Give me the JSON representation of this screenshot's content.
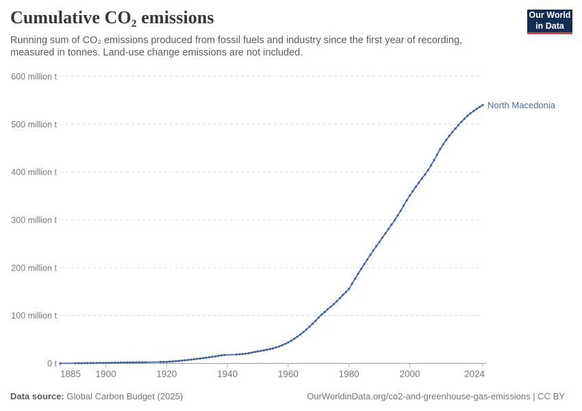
{
  "header": {
    "title": "Cumulative CO₂ emissions",
    "subtitle": "Running sum of CO₂ emissions produced from fossil fuels and industry since the first year of recording, measured in tonnes. Land-use change emissions are not included.",
    "logo_line1": "Our World",
    "logo_line2": "in Data"
  },
  "footer": {
    "source_label": "Data source:",
    "source_value": "Global Carbon Budget (2025)",
    "link_text": "OurWorldinData.org/co2-and-greenhouse-gas-emissions",
    "separator": "|",
    "license": "CC BY"
  },
  "chart_data": {
    "type": "line",
    "title": "Cumulative CO₂ emissions",
    "unit": "tonnes (values stored in million tonnes)",
    "xlabel": "",
    "ylabel": "",
    "xlim": [
      1885,
      2024
    ],
    "ylim_million_t": [
      0,
      600
    ],
    "grid": true,
    "legend_position": "line-end-label",
    "xticks": [
      1885,
      1900,
      1920,
      1940,
      1960,
      1980,
      2000,
      2024
    ],
    "yticks": [
      {
        "value": 0,
        "label": "0 t"
      },
      {
        "value": 100,
        "label": "100 million t"
      },
      {
        "value": 200,
        "label": "200 million t"
      },
      {
        "value": 300,
        "label": "300 million t"
      },
      {
        "value": 400,
        "label": "400 million t"
      },
      {
        "value": 500,
        "label": "500 million t"
      },
      {
        "value": 600,
        "label": "600 million t"
      }
    ],
    "series": [
      {
        "name": "North Macedonia",
        "x_start": 1885,
        "x_step": 1,
        "values_million_t": [
          0.05,
          0.1,
          0.15,
          0.2,
          0.26,
          0.32,
          0.38,
          0.45,
          0.52,
          0.6,
          0.68,
          0.76,
          0.85,
          0.94,
          1.03,
          1.12,
          1.21,
          1.3,
          1.4,
          1.5,
          1.6,
          1.7,
          1.8,
          1.9,
          2.0,
          2.1,
          2.2,
          2.3,
          2.4,
          2.5,
          2.6,
          2.7,
          2.8,
          2.9,
          3.05,
          3.2,
          3.7,
          4.2,
          4.7,
          5.3,
          5.9,
          6.5,
          7.2,
          7.9,
          8.6,
          9.4,
          10.2,
          11.0,
          11.9,
          12.8,
          13.7,
          14.7,
          15.7,
          16.7,
          17.6,
          17.9,
          18.1,
          18.3,
          18.6,
          19.0,
          19.5,
          20.3,
          21.3,
          22.5,
          23.7,
          25.0,
          26.2,
          27.4,
          28.7,
          30.0,
          31.5,
          33.3,
          35.4,
          37.9,
          40.7,
          43.8,
          47.5,
          51.5,
          55.8,
          60.5,
          65.5,
          70.9,
          76.6,
          82.7,
          89.2,
          96.0,
          102,
          107.5,
          113,
          118.5,
          124,
          130,
          136.5,
          143,
          149.5,
          156,
          166.5,
          177,
          187.5,
          197.5,
          207.5,
          217,
          226.5,
          236,
          245,
          254,
          263,
          272,
          281,
          290,
          299,
          309,
          319,
          330,
          340.5,
          351,
          360,
          369,
          378,
          386.5,
          395,
          404,
          414,
          425,
          436.5,
          448,
          458,
          467,
          475.5,
          483.5,
          491,
          498,
          505,
          511.5,
          517.5,
          523,
          527.5,
          532,
          536,
          540
        ]
      }
    ],
    "marker_gap_years": [
      1886,
      1887,
      1888,
      1889,
      1914,
      1915,
      1916,
      1917,
      1940,
      1941,
      1942
    ],
    "colors": {
      "line": "#466aa8",
      "marker": "#3c5e9a",
      "grid": "#dcdcdc",
      "axis": "#999999",
      "tick": "#b3b3b3",
      "axis_text": "#767676",
      "entity_label": "#466aa8"
    }
  }
}
